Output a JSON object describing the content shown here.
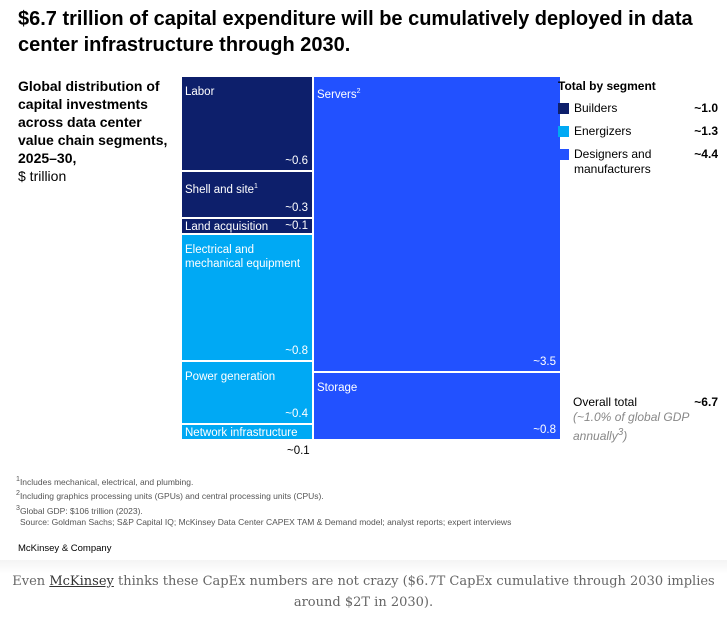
{
  "chart_data": {
    "type": "mekko",
    "title": "$6.7 trillion of capital expenditure will be cumulatively deployed in data center infrastructure through 2030.",
    "subtitle_bold": "Global distribution of capital investments across data center value chain segments, 2025–30,",
    "subtitle_unit": "$ trillion",
    "colors": {
      "Builders": "#0d1f6b",
      "Energizers": "#00a9f4",
      "Designers and manufacturers": "#2251ff"
    },
    "columns": [
      {
        "cells": [
          {
            "label": "Labor",
            "value": 0.6,
            "display": "~0.6",
            "segment": "Builders"
          },
          {
            "label": "Shell and site",
            "sup": "1",
            "value": 0.3,
            "display": "~0.3",
            "segment": "Builders"
          },
          {
            "label": "Land acquisition",
            "value": 0.1,
            "display": "~0.1",
            "segment": "Builders"
          },
          {
            "label": "Electrical and mechanical equipment",
            "value": 0.8,
            "display": "~0.8",
            "segment": "Energizers"
          },
          {
            "label": "Power generation",
            "value": 0.4,
            "display": "~0.4",
            "segment": "Energizers"
          },
          {
            "label": "Network infrastructure",
            "value": 0.1,
            "display": "~0.1",
            "segment": "Energizers"
          }
        ]
      },
      {
        "cells": [
          {
            "label": "Servers",
            "sup": "2",
            "value": 3.5,
            "display": "~3.5",
            "segment": "Designers and manufacturers"
          },
          {
            "label": "Storage",
            "value": 0.8,
            "display": "~0.8",
            "segment": "Designers and manufacturers"
          }
        ]
      }
    ],
    "legend": {
      "title": "Total by segment",
      "items": [
        {
          "name": "Builders",
          "value": "~1.0",
          "color": "#0d1f6b"
        },
        {
          "name": "Energizers",
          "value": "~1.3",
          "color": "#00a9f4"
        },
        {
          "name": "Designers and manufacturers",
          "value": "~4.4",
          "color": "#2251ff"
        }
      ]
    },
    "total": {
      "label": "Overall total",
      "value": "~6.7",
      "note": "(~1.0% of global GDP annually",
      "note_sup": "3",
      "note_end": ")"
    }
  },
  "footnotes": [
    "Includes mechanical, electrical, and plumbing.",
    "Including graphics processing units (GPUs) and central processing units (CPUs).",
    "Global GDP: $106 trillion (2023)."
  ],
  "source": "Source: Goldman Sachs; S&P Capital IQ; McKinsey Data Center CAPEX TAM & Demand model; analyst reports; expert interviews",
  "brand": "McKinsey & Company",
  "caption": {
    "pre": "Even ",
    "link": "McKinsey",
    "post": " thinks these CapEx numbers are not crazy ($6.7T CapEx cumulative through 2030 implies around $2T in 2030)."
  }
}
